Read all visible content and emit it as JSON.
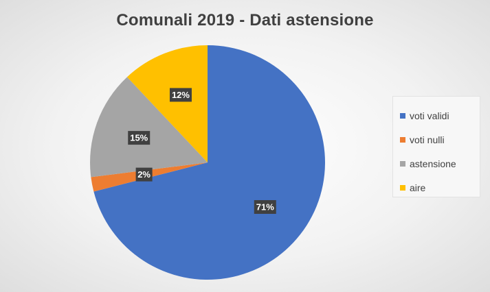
{
  "chart_data": {
    "type": "pie",
    "title": "Comunali 2019 - Dati astensione",
    "categories": [
      "voti validi",
      "voti nulli",
      "astensione",
      "aire"
    ],
    "values": [
      71,
      2,
      15,
      12
    ],
    "labels": [
      "71%",
      "2%",
      "15%",
      "12%"
    ],
    "colors": [
      "#4472C4",
      "#ED7D31",
      "#A5A5A5",
      "#FFC000"
    ],
    "legend": "right",
    "start": "top",
    "direction": "clockwise"
  }
}
